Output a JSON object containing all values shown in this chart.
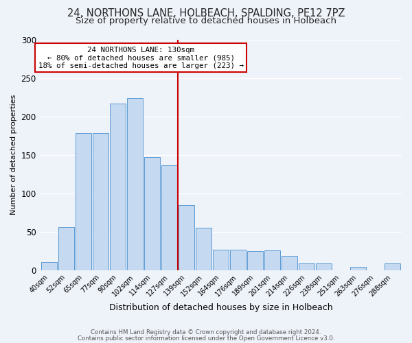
{
  "title": "24, NORTHONS LANE, HOLBEACH, SPALDING, PE12 7PZ",
  "subtitle": "Size of property relative to detached houses in Holbeach",
  "xlabel": "Distribution of detached houses by size in Holbeach",
  "ylabel": "Number of detached properties",
  "bar_labels": [
    "40sqm",
    "52sqm",
    "65sqm",
    "77sqm",
    "90sqm",
    "102sqm",
    "114sqm",
    "127sqm",
    "139sqm",
    "152sqm",
    "164sqm",
    "176sqm",
    "189sqm",
    "201sqm",
    "214sqm",
    "226sqm",
    "238sqm",
    "251sqm",
    "263sqm",
    "276sqm",
    "288sqm"
  ],
  "bar_values": [
    11,
    56,
    178,
    178,
    217,
    224,
    147,
    136,
    85,
    55,
    27,
    27,
    25,
    26,
    19,
    9,
    9,
    0,
    4,
    0,
    9
  ],
  "bar_color": "#c5d9f0",
  "bar_edge_color": "#5b9bd5",
  "reference_line_x": 7.5,
  "reference_line_color": "#cc0000",
  "annotation_title": "24 NORTHONS LANE: 130sqm",
  "annotation_line1": "← 80% of detached houses are smaller (985)",
  "annotation_line2": "18% of semi-detached houses are larger (223) →",
  "annotation_box_color": "#ffffff",
  "annotation_box_edge_color": "#cc0000",
  "ylim": [
    0,
    300
  ],
  "footer1": "Contains HM Land Registry data © Crown copyright and database right 2024.",
  "footer2": "Contains public sector information licensed under the Open Government Licence v3.0.",
  "background_color": "#eef2f9",
  "plot_background_color": "#eef2f9",
  "title_fontsize": 10.5,
  "subtitle_fontsize": 9.5,
  "grid_color": "#ffffff"
}
